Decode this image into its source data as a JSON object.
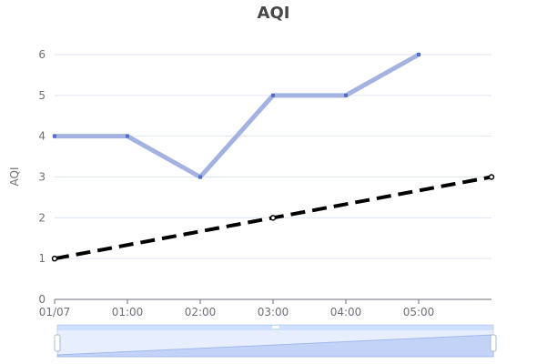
{
  "chart_data": {
    "type": "line",
    "title": "AQI",
    "ylabel": "AQI",
    "xlabel": "",
    "x": [
      "01/07",
      "01:00",
      "02:00",
      "03:00",
      "04:00",
      "05:00"
    ],
    "ylim": [
      0,
      6
    ],
    "yticks": [
      0,
      1,
      2,
      3,
      4,
      5,
      6
    ],
    "grid": true,
    "legend": "none",
    "series": [
      {
        "values": [
          4,
          4,
          3,
          5,
          5,
          6
        ],
        "color": "#a3b2e0",
        "style": "solid"
      },
      {
        "values": [
          1,
          null,
          null,
          2,
          null,
          null
        ],
        "end_value": 3,
        "color": "#000000",
        "style": "dashed"
      }
    ],
    "data_zoom": {
      "range": [
        0,
        100
      ]
    }
  }
}
